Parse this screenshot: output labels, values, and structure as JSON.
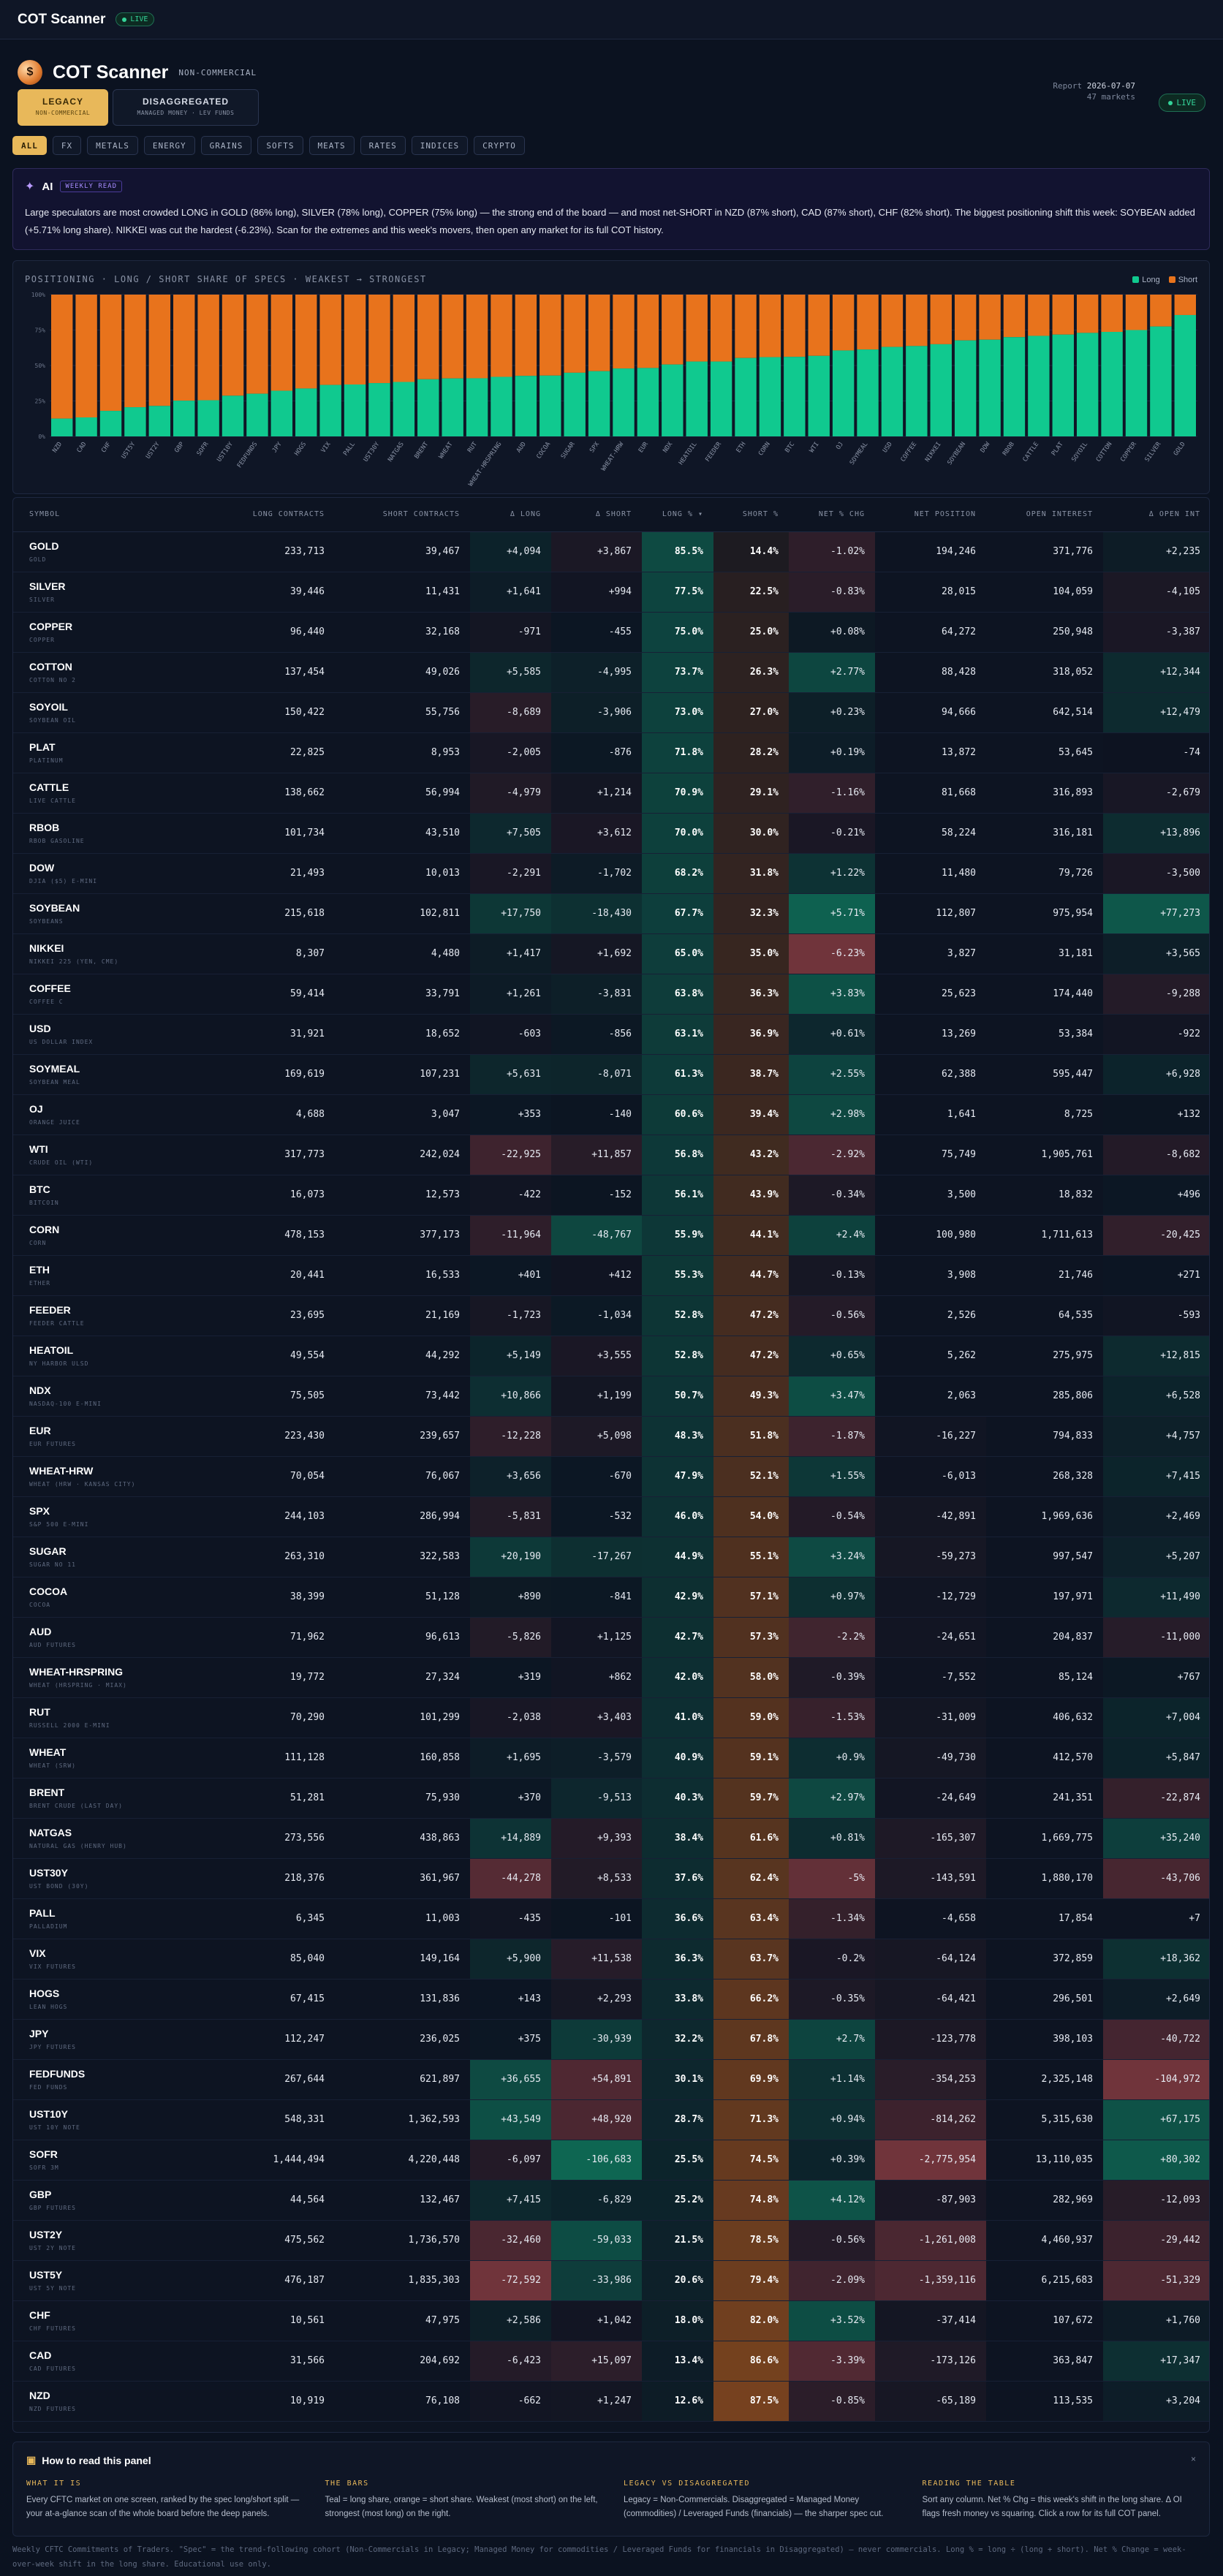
{
  "topbar": {
    "brand": "COT Scanner",
    "live": "LIVE"
  },
  "header": {
    "title": "COT Scanner",
    "tag": "NON-COMMERCIAL",
    "report_label": "Report",
    "report_date": "2026-07-07",
    "markets": "47 markets",
    "live": "LIVE"
  },
  "modes": [
    {
      "label": "LEGACY",
      "sub": "NON-COMMERCIAL"
    },
    {
      "label": "DISAGGREGATED",
      "sub": "MANAGED MONEY · LEV FUNDS"
    }
  ],
  "filters": [
    "ALL",
    "FX",
    "METALS",
    "ENERGY",
    "GRAINS",
    "SOFTS",
    "MEATS",
    "RATES",
    "INDICES",
    "CRYPTO"
  ],
  "ai": {
    "label": "AI",
    "badge": "WEEKLY READ",
    "text": "Large speculators are most crowded LONG in GOLD (86% long), SILVER (78% long), COPPER (75% long) — the strong end of the board — and most net-SHORT in NZD (87% short), CAD (87% short), CHF (82% short). The biggest positioning shift this week: SOYBEAN added (+5.71% long share). NIKKEI was cut the hardest (-6.23%). Scan for the extremes and this week's movers, then open any market for its full COT history."
  },
  "chart_data": {
    "type": "bar",
    "title": "POSITIONING · LONG / SHORT SHARE OF SPECS · WEAKEST → STRONGEST",
    "legend": [
      "Long",
      "Short"
    ],
    "legend_position": "top-right",
    "ylim": [
      0,
      100
    ],
    "y_ticks": [
      "0%",
      "25%",
      "50%",
      "75%",
      "100%"
    ],
    "categories": [
      "NZD",
      "CAD",
      "CHF",
      "UST5Y",
      "UST2Y",
      "GBP",
      "SOFR",
      "UST10Y",
      "FEDFUNDS",
      "JPY",
      "HOGS",
      "VIX",
      "PALL",
      "UST30Y",
      "NATGAS",
      "BRENT",
      "WHEAT",
      "RUT",
      "WHEAT-HRSPRING",
      "AUD",
      "COCOA",
      "SUGAR",
      "SPX",
      "WHEAT-HRW",
      "EUR",
      "NDX",
      "HEATOIL",
      "FEEDER",
      "ETH",
      "CORN",
      "BTC",
      "WTI",
      "OJ",
      "SOYMEAL",
      "USD",
      "COFFEE",
      "NIKKEI",
      "SOYBEAN",
      "DOW",
      "RBOB",
      "CATTLE",
      "PLAT",
      "SOYOIL",
      "COTTON",
      "COPPER",
      "SILVER",
      "GOLD"
    ],
    "series": [
      {
        "name": "Long",
        "values": [
          12.6,
          13.4,
          18.0,
          20.6,
          21.5,
          25.2,
          25.5,
          28.7,
          30.1,
          32.2,
          33.8,
          36.3,
          36.6,
          37.6,
          38.4,
          40.3,
          40.9,
          41.0,
          42.0,
          42.7,
          42.9,
          44.9,
          46.0,
          47.9,
          48.3,
          50.7,
          52.8,
          52.8,
          55.3,
          55.9,
          56.1,
          56.8,
          60.6,
          61.3,
          63.1,
          63.8,
          65.0,
          67.7,
          68.2,
          70.0,
          70.9,
          71.8,
          73.0,
          73.7,
          75.0,
          77.5,
          85.5
        ]
      },
      {
        "name": "Short",
        "values": [
          87.5,
          86.6,
          82.0,
          79.4,
          78.5,
          74.8,
          74.5,
          71.3,
          69.9,
          67.8,
          66.2,
          63.7,
          63.4,
          62.4,
          61.6,
          59.7,
          59.1,
          59.0,
          58.0,
          57.3,
          57.1,
          55.1,
          54.0,
          52.1,
          51.8,
          49.3,
          47.2,
          47.2,
          44.7,
          44.1,
          43.9,
          43.2,
          39.4,
          38.7,
          36.9,
          36.3,
          35.0,
          32.3,
          31.8,
          30.0,
          29.1,
          28.2,
          27.0,
          26.3,
          25.0,
          22.5,
          14.4
        ]
      }
    ]
  },
  "table": {
    "columns": [
      "SYMBOL",
      "LONG CONTRACTS",
      "SHORT CONTRACTS",
      "Δ LONG",
      "Δ SHORT",
      "LONG % ▾",
      "SHORT %",
      "NET % CHG",
      "NET POSITION",
      "OPEN INTEREST",
      "Δ OPEN INT"
    ],
    "rows": [
      [
        "GOLD",
        "GOLD",
        "233,713",
        "39,467",
        "+4,094",
        "+3,867",
        "85.5%",
        "14.4%",
        "-1.02%",
        "194,246",
        "371,776",
        "+2,235"
      ],
      [
        "SILVER",
        "SILVER",
        "39,446",
        "11,431",
        "+1,641",
        "+994",
        "77.5%",
        "22.5%",
        "-0.83%",
        "28,015",
        "104,059",
        "-4,105"
      ],
      [
        "COPPER",
        "COPPER",
        "96,440",
        "32,168",
        "-971",
        "-455",
        "75.0%",
        "25.0%",
        "+0.08%",
        "64,272",
        "250,948",
        "-3,387"
      ],
      [
        "COTTON",
        "COTTON NO 2",
        "137,454",
        "49,026",
        "+5,585",
        "-4,995",
        "73.7%",
        "26.3%",
        "+2.77%",
        "88,428",
        "318,052",
        "+12,344"
      ],
      [
        "SOYOIL",
        "SOYBEAN OIL",
        "150,422",
        "55,756",
        "-8,689",
        "-3,906",
        "73.0%",
        "27.0%",
        "+0.23%",
        "94,666",
        "642,514",
        "+12,479"
      ],
      [
        "PLAT",
        "PLATINUM",
        "22,825",
        "8,953",
        "-2,005",
        "-876",
        "71.8%",
        "28.2%",
        "+0.19%",
        "13,872",
        "53,645",
        "-74"
      ],
      [
        "CATTLE",
        "LIVE CATTLE",
        "138,662",
        "56,994",
        "-4,979",
        "+1,214",
        "70.9%",
        "29.1%",
        "-1.16%",
        "81,668",
        "316,893",
        "-2,679"
      ],
      [
        "RBOB",
        "RBOB GASOLINE",
        "101,734",
        "43,510",
        "+7,505",
        "+3,612",
        "70.0%",
        "30.0%",
        "-0.21%",
        "58,224",
        "316,181",
        "+13,896"
      ],
      [
        "DOW",
        "DJIA ($5) E-MINI",
        "21,493",
        "10,013",
        "-2,291",
        "-1,702",
        "68.2%",
        "31.8%",
        "+1.22%",
        "11,480",
        "79,726",
        "-3,500"
      ],
      [
        "SOYBEAN",
        "SOYBEANS",
        "215,618",
        "102,811",
        "+17,750",
        "-18,430",
        "67.7%",
        "32.3%",
        "+5.71%",
        "112,807",
        "975,954",
        "+77,273"
      ],
      [
        "NIKKEI",
        "NIKKEI 225 (YEN, CME)",
        "8,307",
        "4,480",
        "+1,417",
        "+1,692",
        "65.0%",
        "35.0%",
        "-6.23%",
        "3,827",
        "31,181",
        "+3,565"
      ],
      [
        "COFFEE",
        "COFFEE C",
        "59,414",
        "33,791",
        "+1,261",
        "-3,831",
        "63.8%",
        "36.3%",
        "+3.83%",
        "25,623",
        "174,440",
        "-9,288"
      ],
      [
        "USD",
        "US DOLLAR INDEX",
        "31,921",
        "18,652",
        "-603",
        "-856",
        "63.1%",
        "36.9%",
        "+0.61%",
        "13,269",
        "53,384",
        "-922"
      ],
      [
        "SOYMEAL",
        "SOYBEAN MEAL",
        "169,619",
        "107,231",
        "+5,631",
        "-8,071",
        "61.3%",
        "38.7%",
        "+2.55%",
        "62,388",
        "595,447",
        "+6,928"
      ],
      [
        "OJ",
        "ORANGE JUICE",
        "4,688",
        "3,047",
        "+353",
        "-140",
        "60.6%",
        "39.4%",
        "+2.98%",
        "1,641",
        "8,725",
        "+132"
      ],
      [
        "WTI",
        "CRUDE OIL (WTI)",
        "317,773",
        "242,024",
        "-22,925",
        "+11,857",
        "56.8%",
        "43.2%",
        "-2.92%",
        "75,749",
        "1,905,761",
        "-8,682"
      ],
      [
        "BTC",
        "BITCOIN",
        "16,073",
        "12,573",
        "-422",
        "-152",
        "56.1%",
        "43.9%",
        "-0.34%",
        "3,500",
        "18,832",
        "+496"
      ],
      [
        "CORN",
        "CORN",
        "478,153",
        "377,173",
        "-11,964",
        "-48,767",
        "55.9%",
        "44.1%",
        "+2.4%",
        "100,980",
        "1,711,613",
        "-20,425"
      ],
      [
        "ETH",
        "ETHER",
        "20,441",
        "16,533",
        "+401",
        "+412",
        "55.3%",
        "44.7%",
        "-0.13%",
        "3,908",
        "21,746",
        "+271"
      ],
      [
        "FEEDER",
        "FEEDER CATTLE",
        "23,695",
        "21,169",
        "-1,723",
        "-1,034",
        "52.8%",
        "47.2%",
        "-0.56%",
        "2,526",
        "64,535",
        "-593"
      ],
      [
        "HEATOIL",
        "NY HARBOR ULSD",
        "49,554",
        "44,292",
        "+5,149",
        "+3,555",
        "52.8%",
        "47.2%",
        "+0.65%",
        "5,262",
        "275,975",
        "+12,815"
      ],
      [
        "NDX",
        "NASDAQ-100 E-MINI",
        "75,505",
        "73,442",
        "+10,866",
        "+1,199",
        "50.7%",
        "49.3%",
        "+3.47%",
        "2,063",
        "285,806",
        "+6,528"
      ],
      [
        "EUR",
        "EUR FUTURES",
        "223,430",
        "239,657",
        "-12,228",
        "+5,098",
        "48.3%",
        "51.8%",
        "-1.87%",
        "-16,227",
        "794,833",
        "+4,757"
      ],
      [
        "WHEAT-HRW",
        "WHEAT (HRW · KANSAS CITY)",
        "70,054",
        "76,067",
        "+3,656",
        "-670",
        "47.9%",
        "52.1%",
        "+1.55%",
        "-6,013",
        "268,328",
        "+7,415"
      ],
      [
        "SPX",
        "S&P 500 E-MINI",
        "244,103",
        "286,994",
        "-5,831",
        "-532",
        "46.0%",
        "54.0%",
        "-0.54%",
        "-42,891",
        "1,969,636",
        "+2,469"
      ],
      [
        "SUGAR",
        "SUGAR NO 11",
        "263,310",
        "322,583",
        "+20,190",
        "-17,267",
        "44.9%",
        "55.1%",
        "+3.24%",
        "-59,273",
        "997,547",
        "+5,207"
      ],
      [
        "COCOA",
        "COCOA",
        "38,399",
        "51,128",
        "+890",
        "-841",
        "42.9%",
        "57.1%",
        "+0.97%",
        "-12,729",
        "197,971",
        "+11,490"
      ],
      [
        "AUD",
        "AUD FUTURES",
        "71,962",
        "96,613",
        "-5,826",
        "+1,125",
        "42.7%",
        "57.3%",
        "-2.2%",
        "-24,651",
        "204,837",
        "-11,000"
      ],
      [
        "WHEAT-HRSPRING",
        "WHEAT (HRSPRING · MIAX)",
        "19,772",
        "27,324",
        "+319",
        "+862",
        "42.0%",
        "58.0%",
        "-0.39%",
        "-7,552",
        "85,124",
        "+767"
      ],
      [
        "RUT",
        "RUSSELL 2000 E-MINI",
        "70,290",
        "101,299",
        "-2,038",
        "+3,403",
        "41.0%",
        "59.0%",
        "-1.53%",
        "-31,009",
        "406,632",
        "+7,004"
      ],
      [
        "WHEAT",
        "WHEAT (SRW)",
        "111,128",
        "160,858",
        "+1,695",
        "-3,579",
        "40.9%",
        "59.1%",
        "+0.9%",
        "-49,730",
        "412,570",
        "+5,847"
      ],
      [
        "BRENT",
        "BRENT CRUDE (LAST DAY)",
        "51,281",
        "75,930",
        "+370",
        "-9,513",
        "40.3%",
        "59.7%",
        "+2.97%",
        "-24,649",
        "241,351",
        "-22,874"
      ],
      [
        "NATGAS",
        "NATURAL GAS (HENRY HUB)",
        "273,556",
        "438,863",
        "+14,889",
        "+9,393",
        "38.4%",
        "61.6%",
        "+0.81%",
        "-165,307",
        "1,669,775",
        "+35,240"
      ],
      [
        "UST30Y",
        "UST BOND (30Y)",
        "218,376",
        "361,967",
        "-44,278",
        "+8,533",
        "37.6%",
        "62.4%",
        "-5%",
        "-143,591",
        "1,880,170",
        "-43,706"
      ],
      [
        "PALL",
        "PALLADIUM",
        "6,345",
        "11,003",
        "-435",
        "-101",
        "36.6%",
        "63.4%",
        "-1.34%",
        "-4,658",
        "17,854",
        "+7"
      ],
      [
        "VIX",
        "VIX FUTURES",
        "85,040",
        "149,164",
        "+5,900",
        "+11,538",
        "36.3%",
        "63.7%",
        "-0.2%",
        "-64,124",
        "372,859",
        "+18,362"
      ],
      [
        "HOGS",
        "LEAN HOGS",
        "67,415",
        "131,836",
        "+143",
        "+2,293",
        "33.8%",
        "66.2%",
        "-0.35%",
        "-64,421",
        "296,501",
        "+2,649"
      ],
      [
        "JPY",
        "JPY FUTURES",
        "112,247",
        "236,025",
        "+375",
        "-30,939",
        "32.2%",
        "67.8%",
        "+2.7%",
        "-123,778",
        "398,103",
        "-40,722"
      ],
      [
        "FEDFUNDS",
        "FED FUNDS",
        "267,644",
        "621,897",
        "+36,655",
        "+54,891",
        "30.1%",
        "69.9%",
        "+1.14%",
        "-354,253",
        "2,325,148",
        "-104,972"
      ],
      [
        "UST10Y",
        "UST 10Y NOTE",
        "548,331",
        "1,362,593",
        "+43,549",
        "+48,920",
        "28.7%",
        "71.3%",
        "+0.94%",
        "-814,262",
        "5,315,630",
        "+67,175"
      ],
      [
        "SOFR",
        "SOFR 3M",
        "1,444,494",
        "4,220,448",
        "-6,097",
        "-106,683",
        "25.5%",
        "74.5%",
        "+0.39%",
        "-2,775,954",
        "13,110,035",
        "+80,302"
      ],
      [
        "GBP",
        "GBP FUTURES",
        "44,564",
        "132,467",
        "+7,415",
        "-6,829",
        "25.2%",
        "74.8%",
        "+4.12%",
        "-87,903",
        "282,969",
        "-12,093"
      ],
      [
        "UST2Y",
        "UST 2Y NOTE",
        "475,562",
        "1,736,570",
        "-32,460",
        "-59,033",
        "21.5%",
        "78.5%",
        "-0.56%",
        "-1,261,008",
        "4,460,937",
        "-29,442"
      ],
      [
        "UST5Y",
        "UST 5Y NOTE",
        "476,187",
        "1,835,303",
        "-72,592",
        "-33,986",
        "20.6%",
        "79.4%",
        "-2.09%",
        "-1,359,116",
        "6,215,683",
        "-51,329"
      ],
      [
        "CHF",
        "CHF FUTURES",
        "10,561",
        "47,975",
        "+2,586",
        "+1,042",
        "18.0%",
        "82.0%",
        "+3.52%",
        "-37,414",
        "107,672",
        "+1,760"
      ],
      [
        "CAD",
        "CAD FUTURES",
        "31,566",
        "204,692",
        "-6,423",
        "+15,097",
        "13.4%",
        "86.6%",
        "-3.39%",
        "-173,126",
        "363,847",
        "+17,347"
      ],
      [
        "NZD",
        "NZD FUTURES",
        "10,919",
        "76,108",
        "-662",
        "+1,247",
        "12.6%",
        "87.5%",
        "-0.85%",
        "-65,189",
        "113,535",
        "+3,204"
      ]
    ]
  },
  "howto": {
    "title": "How to read this panel",
    "close": "×",
    "cols": [
      {
        "h": "WHAT IT IS",
        "p": "Every CFTC market on one screen, ranked by the spec long/short split — your at-a-glance scan of the whole board before the deep panels."
      },
      {
        "h": "THE BARS",
        "p": "Teal = long share, orange = short share. Weakest (most short) on the left, strongest (most long) on the right."
      },
      {
        "h": "LEGACY VS DISAGGREGATED",
        "p": "Legacy = Non-Commercials. Disaggregated = Managed Money (commodities) / Leveraged Funds (financials) — the sharper spec cut."
      },
      {
        "h": "READING THE TABLE",
        "p": "Sort any column. Net % Chg = this week's shift in the long share. Δ OI flags fresh money vs squaring. Click a row for its full COT panel."
      }
    ]
  },
  "footer": "Weekly CFTC Commitments of Traders. \"Spec\" = the trend-following cohort (Non-Commercials in Legacy; Managed Money for commodities / Leveraged Funds for financials in Disaggregated) — never commercials. Long % = long ÷ (long + short). Net % Change = week-over-week shift in the long share. Educational use only.",
  "colors": {
    "long": "#10c98f",
    "short": "#e8731c",
    "accent": "#e8b85a",
    "bg": "#0b1220"
  }
}
